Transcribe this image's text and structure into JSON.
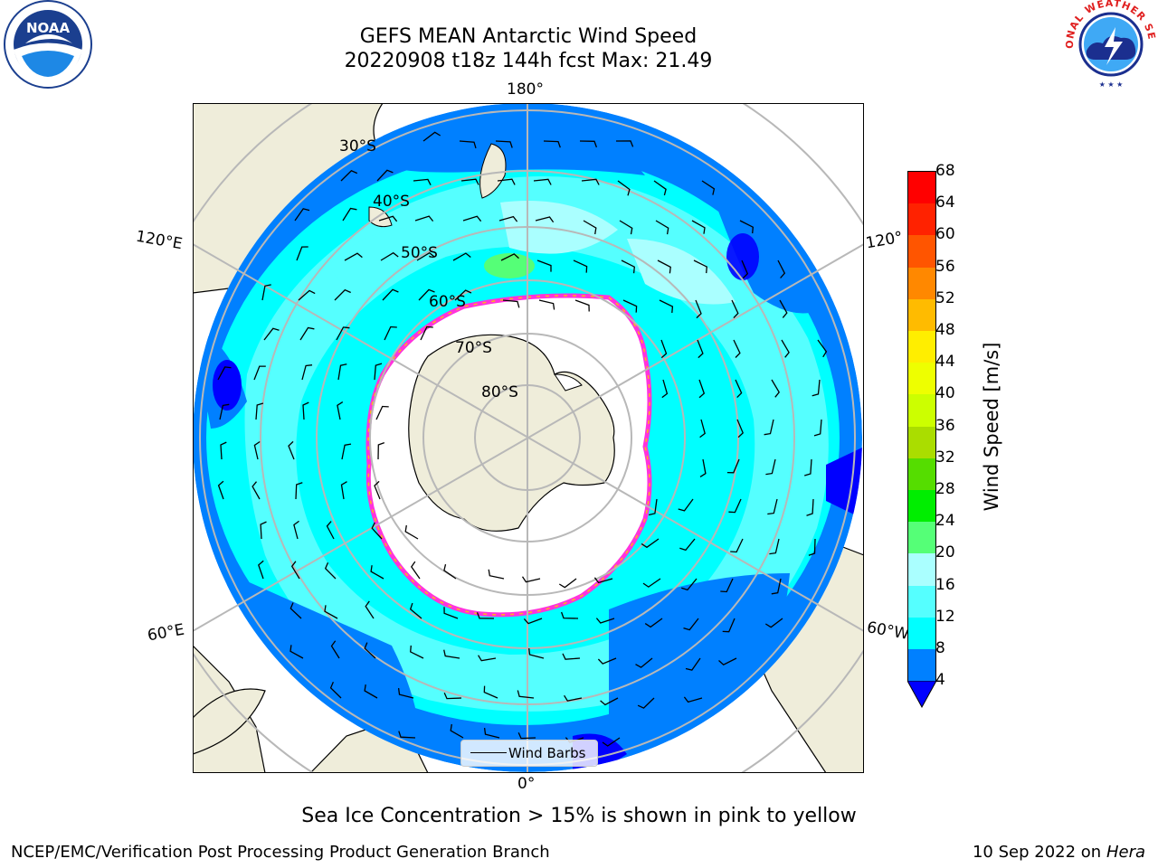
{
  "title": {
    "line1": "GEFS MEAN Antarctic Wind Speed",
    "line2": "20220908 t18z 144h fcst   Max: 21.49"
  },
  "logos": {
    "left": "NOAA",
    "left_ring_text": "NATIONAL OCEANIC AND ATMOSPHERIC ADMINISTRATION · U.S. DEPARTMENT OF COMMERCE",
    "right_ring_text": "NATIONAL WEATHER SERVICE"
  },
  "map": {
    "projection": "south-polar-stereographic",
    "longitude_labels": {
      "top": "180°",
      "bottom": "0°",
      "left_upper": "120°E",
      "left_lower": "60°E",
      "right_upper": "120°",
      "right_lower": "60°W"
    },
    "latitude_labels": [
      "30°S",
      "40°S",
      "50°S",
      "60°S",
      "70°S",
      "80°S"
    ],
    "legend": {
      "label": "Wind Barbs"
    },
    "colors": {
      "land": "#efedda",
      "gridline": "#b8b8b8",
      "sea_ice_edge": "#ff33dd",
      "sea_ice_high": "#ffb020"
    }
  },
  "colorbar": {
    "label": "Wind Speed [m/s]",
    "ticks": [
      "68",
      "64",
      "60",
      "56",
      "52",
      "48",
      "44",
      "40",
      "36",
      "32",
      "28",
      "24",
      "20",
      "16",
      "12",
      "8",
      "4"
    ],
    "levels": [
      4,
      8,
      12,
      16,
      20,
      24,
      28,
      32,
      36,
      40,
      44,
      48,
      52,
      56,
      60,
      64,
      68
    ],
    "colors": [
      "#0000ff",
      "#0080ff",
      "#00ffff",
      "#55ffff",
      "#aaffff",
      "#55ff77",
      "#00ee00",
      "#55dd00",
      "#aadd00",
      "#ccff00",
      "#eeff00",
      "#ffee00",
      "#ffbb00",
      "#ff8800",
      "#ff5500",
      "#ff2200",
      "#ff0000"
    ],
    "extend": "min"
  },
  "footer": {
    "note": "Sea Ice Concentration > 15% is shown in pink to yellow",
    "credit": "NCEP/EMC/Verification Post Processing Product Generation Branch",
    "stamp_date": "10 Sep 2022 on",
    "stamp_machine": "Hera"
  }
}
